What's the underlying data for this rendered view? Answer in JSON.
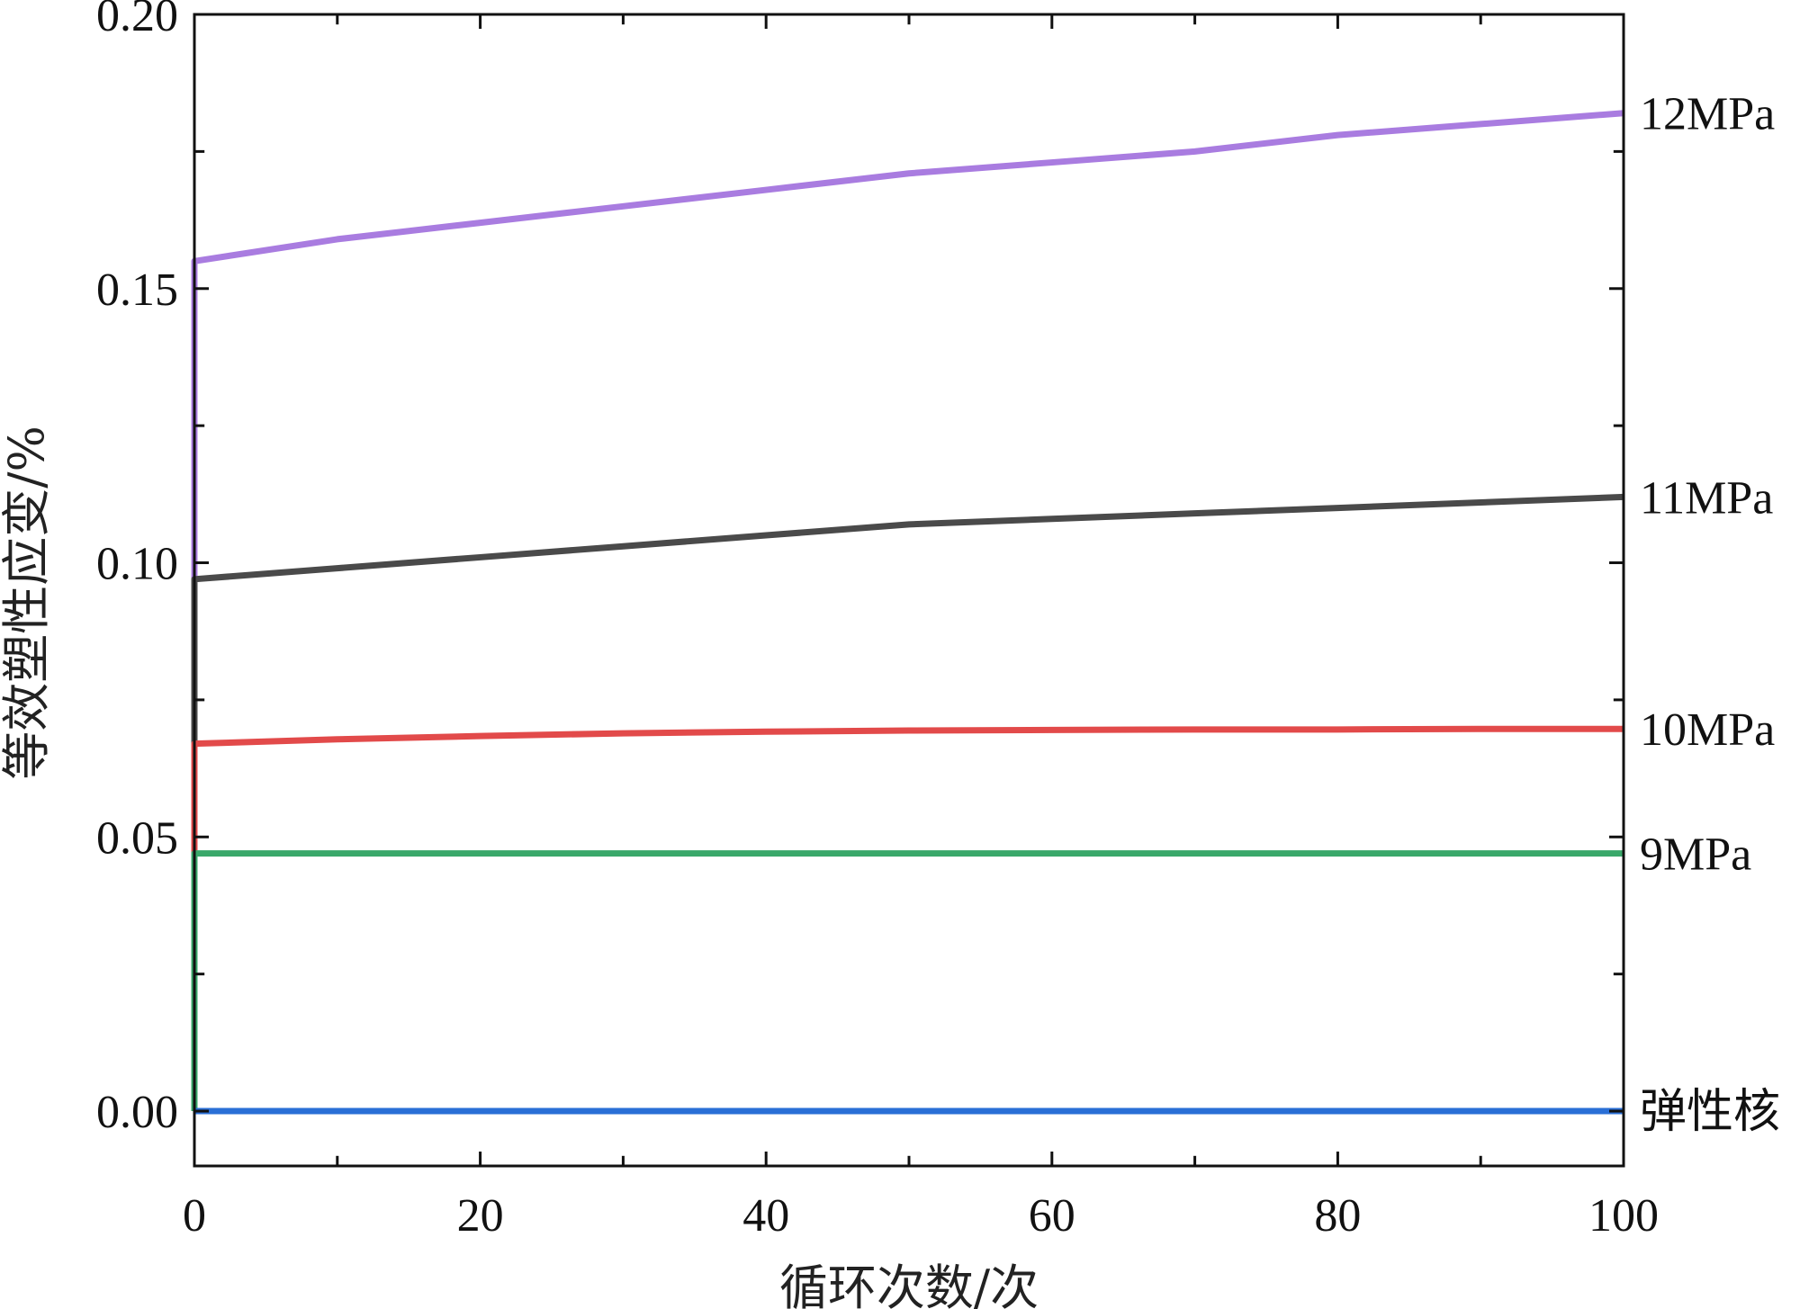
{
  "chart_data": {
    "type": "line",
    "title": "",
    "xlabel": "循环次数/次",
    "ylabel": "等效塑性应变/%",
    "xlim": [
      0,
      100
    ],
    "ylim": [
      -0.01,
      0.2
    ],
    "x_ticks": [
      0,
      20,
      40,
      60,
      80,
      100
    ],
    "x_tick_labels": [
      "0",
      "20",
      "40",
      "60",
      "80",
      "100"
    ],
    "y_ticks": [
      0.0,
      0.05,
      0.1,
      0.15,
      0.2
    ],
    "y_tick_labels": [
      "0.00",
      "0.05",
      "0.10",
      "0.15",
      "0.20"
    ],
    "grid": false,
    "series": [
      {
        "name": "12MPa",
        "color": "#a97ce0",
        "points": [
          [
            0,
            0
          ],
          [
            0,
            0.155
          ],
          [
            10,
            0.159
          ],
          [
            20,
            0.162
          ],
          [
            30,
            0.165
          ],
          [
            40,
            0.168
          ],
          [
            50,
            0.171
          ],
          [
            60,
            0.173
          ],
          [
            70,
            0.175
          ],
          [
            80,
            0.178
          ],
          [
            90,
            0.18
          ],
          [
            100,
            0.182
          ]
        ]
      },
      {
        "name": "11MPa",
        "color": "#4a4a4a",
        "points": [
          [
            0,
            0
          ],
          [
            0,
            0.097
          ],
          [
            10,
            0.099
          ],
          [
            20,
            0.101
          ],
          [
            30,
            0.103
          ],
          [
            40,
            0.105
          ],
          [
            50,
            0.107
          ],
          [
            60,
            0.108
          ],
          [
            70,
            0.109
          ],
          [
            80,
            0.11
          ],
          [
            90,
            0.111
          ],
          [
            100,
            0.112
          ]
        ]
      },
      {
        "name": "10MPa",
        "color": "#e24a4a",
        "points": [
          [
            0,
            0
          ],
          [
            0,
            0.067
          ],
          [
            10,
            0.0678
          ],
          [
            20,
            0.0684
          ],
          [
            30,
            0.0689
          ],
          [
            40,
            0.0692
          ],
          [
            50,
            0.0694
          ],
          [
            60,
            0.0695
          ],
          [
            70,
            0.0696
          ],
          [
            80,
            0.0696
          ],
          [
            90,
            0.0697
          ],
          [
            100,
            0.0697
          ]
        ]
      },
      {
        "name": "9MPa",
        "color": "#3aa86a",
        "points": [
          [
            0,
            0
          ],
          [
            0,
            0.047
          ],
          [
            100,
            0.047
          ]
        ]
      },
      {
        "name": "弹性核",
        "color": "#2a6fd6",
        "points": [
          [
            0,
            0
          ],
          [
            100,
            0
          ]
        ]
      }
    ]
  }
}
